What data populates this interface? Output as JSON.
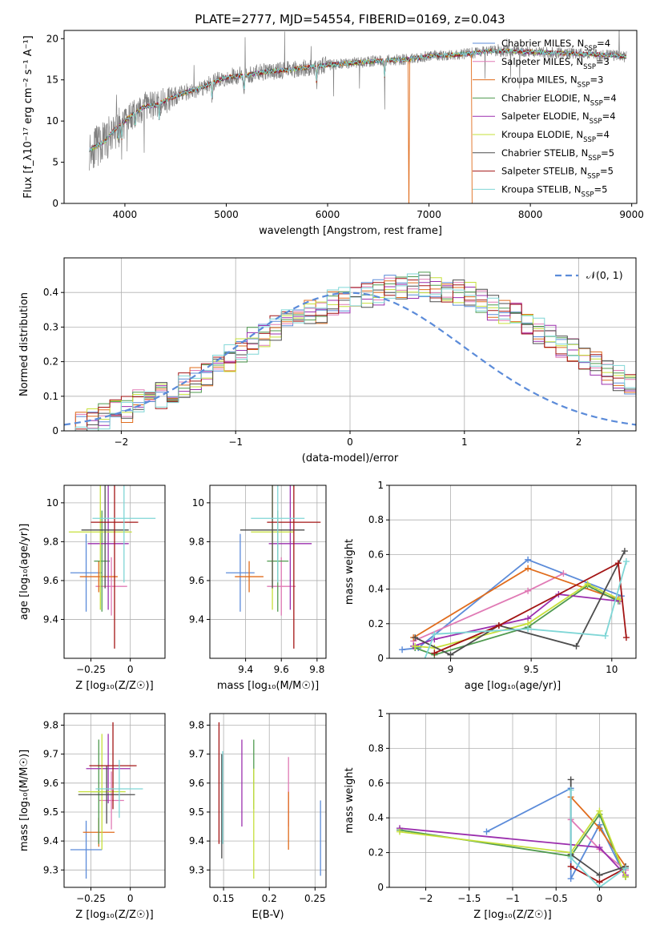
{
  "figure_title": "PLATE=2777, MJD=54554, FIBERID=0169, z=0.043",
  "colors": {
    "chabrier_miles": "#5b8bd9",
    "salpeter_miles": "#e07ab5",
    "kroupa_miles": "#e06c1c",
    "chabrier_elodie": "#4f9a4f",
    "salpeter_elodie": "#9b2fae",
    "kroupa_elodie": "#c6e03a",
    "chabrier_stelib": "#4d4d4d",
    "salpeter_stelib": "#a31515",
    "kroupa_stelib": "#7fd6d6",
    "data": "#808080",
    "gaussian": "#5b8bd9",
    "grid": "#b0b0b0"
  },
  "chart_data": [
    {
      "id": "spectrum",
      "type": "line",
      "xlabel": "wavelength [Angstrom, rest frame]",
      "ylabel": "Flux [f_λ10⁻¹⁷ erg cm⁻² s⁻¹ A⁻¹]",
      "xlim": [
        3400,
        9050
      ],
      "ylim": [
        0,
        21
      ],
      "xticks": [
        4000,
        5000,
        6000,
        7000,
        8000,
        9000
      ],
      "yticks": [
        0,
        5,
        10,
        15,
        20
      ],
      "grid": false,
      "legend_position": "right",
      "data_range": [
        3650,
        8950
      ],
      "continuum": [
        [
          3650,
          6.5
        ],
        [
          3700,
          6.8
        ],
        [
          3800,
          7.5
        ],
        [
          3900,
          9.0
        ],
        [
          4000,
          10.0
        ],
        [
          4100,
          11.0
        ],
        [
          4200,
          11.8
        ],
        [
          4300,
          11.9
        ],
        [
          4400,
          12.5
        ],
        [
          4500,
          13.0
        ],
        [
          4600,
          13.5
        ],
        [
          4700,
          13.8
        ],
        [
          4800,
          14.3
        ],
        [
          4900,
          14.8
        ],
        [
          5000,
          15.3
        ],
        [
          5200,
          15.6
        ],
        [
          5400,
          16.0
        ],
        [
          5600,
          16.2
        ],
        [
          5800,
          16.5
        ],
        [
          6000,
          16.8
        ],
        [
          6200,
          17.0
        ],
        [
          6400,
          17.2
        ],
        [
          6600,
          17.4
        ],
        [
          6800,
          17.5
        ],
        [
          7000,
          17.9
        ],
        [
          7200,
          18.0
        ],
        [
          7400,
          18.2
        ],
        [
          7600,
          18.5
        ],
        [
          7800,
          18.5
        ],
        [
          8000,
          18.4
        ],
        [
          8200,
          18.3
        ],
        [
          8400,
          18.2
        ],
        [
          8600,
          18.1
        ],
        [
          8800,
          18.0
        ],
        [
          8950,
          17.8
        ]
      ],
      "legend": [
        {
          "key": "chabrier_miles",
          "prefix": "Chabrier MILES, N",
          "sub": "SSP",
          "suffix": "=4"
        },
        {
          "key": "salpeter_miles",
          "prefix": "Salpeter MILES, N",
          "sub": "SSP",
          "suffix": "=3"
        },
        {
          "key": "kroupa_miles",
          "prefix": "Kroupa MILES, N",
          "sub": "SSP",
          "suffix": "=3"
        },
        {
          "key": "chabrier_elodie",
          "prefix": "Chabrier ELODIE, N",
          "sub": "SSP",
          "suffix": "=4"
        },
        {
          "key": "salpeter_elodie",
          "prefix": "Salpeter ELODIE, N",
          "sub": "SSP",
          "suffix": "=4"
        },
        {
          "key": "kroupa_elodie",
          "prefix": "Kroupa ELODIE, N",
          "sub": "SSP",
          "suffix": "=4"
        },
        {
          "key": "chabrier_stelib",
          "prefix": "Chabrier STELIB, N",
          "sub": "SSP",
          "suffix": "=5"
        },
        {
          "key": "salpeter_stelib",
          "prefix": "Salpeter STELIB, N",
          "sub": "SSP",
          "suffix": "=5"
        },
        {
          "key": "kroupa_stelib",
          "prefix": "Kroupa STELIB, N",
          "sub": "SSP",
          "suffix": "=5"
        }
      ]
    },
    {
      "id": "residuals",
      "type": "histogram",
      "xlabel": "(data-model)/error",
      "ylabel": "Normed distribution",
      "xlim": [
        -2.5,
        2.5
      ],
      "ylim": [
        0,
        0.5
      ],
      "xticks": [
        -2,
        -1,
        0,
        1,
        2
      ],
      "yticks": [
        0.0,
        0.1,
        0.2,
        0.3,
        0.4
      ],
      "grid": true,
      "legend": "𝒩(0, 1)",
      "legend_position": "top-right",
      "bin_width": 0.1,
      "bins_start": -2.5,
      "base": [
        0.02,
        0.02,
        0.03,
        0.04,
        0.05,
        0.06,
        0.08,
        0.09,
        0.1,
        0.11,
        0.13,
        0.15,
        0.17,
        0.19,
        0.21,
        0.23,
        0.26,
        0.28,
        0.3,
        0.31,
        0.33,
        0.34,
        0.35,
        0.37,
        0.38,
        0.39,
        0.39,
        0.4,
        0.41,
        0.42,
        0.42,
        0.42,
        0.41,
        0.41,
        0.4,
        0.39,
        0.37,
        0.36,
        0.34,
        0.33,
        0.31,
        0.29,
        0.27,
        0.25,
        0.23,
        0.21,
        0.19,
        0.17,
        0.15,
        0.13,
        0.11,
        0.1,
        0.08,
        0.07,
        0.06,
        0.05,
        0.04,
        0.03,
        0.03,
        0.02
      ]
    },
    {
      "id": "age_vs_z",
      "type": "errorbar",
      "xlabel": "Z [log₁₀(Z/Z☉)]",
      "ylabel": "age  [log₁₀(age/yr)]",
      "xlim": [
        -0.42,
        0.22
      ],
      "ylim": [
        9.2,
        10.09
      ],
      "xticks": [
        -0.25,
        0.0
      ],
      "yticks": [
        9.4,
        9.6,
        9.8,
        10.0
      ],
      "grid": true,
      "points": [
        {
          "k": "chabrier_miles",
          "x": -0.28,
          "xe": 0.1,
          "y": 9.64,
          "ye": 0.2
        },
        {
          "k": "salpeter_miles",
          "x": -0.12,
          "xe": 0.1,
          "y": 9.57,
          "ye": 0.15
        },
        {
          "k": "kroupa_miles",
          "x": -0.2,
          "xe": 0.12,
          "y": 9.62,
          "ye": 0.08
        },
        {
          "k": "chabrier_elodie",
          "x": -0.18,
          "xe": 0.05,
          "y": 9.7,
          "ye": 0.26
        },
        {
          "k": "salpeter_elodie",
          "x": -0.14,
          "xe": 0.13,
          "y": 9.79,
          "ye": 0.34
        },
        {
          "k": "kroupa_elodie",
          "x": -0.19,
          "xe": 0.2,
          "y": 9.85,
          "ye": 0.4
        },
        {
          "k": "chabrier_stelib",
          "x": -0.16,
          "xe": 0.15,
          "y": 9.86,
          "ye": 0.3
        },
        {
          "k": "salpeter_stelib",
          "x": -0.1,
          "xe": 0.15,
          "y": 9.9,
          "ye": 0.65
        },
        {
          "k": "kroupa_stelib",
          "x": -0.04,
          "xe": 0.2,
          "y": 9.92,
          "ye": 0.33
        }
      ]
    },
    {
      "id": "age_vs_mass",
      "type": "errorbar",
      "xlabel": "mass [log₁₀(M/M☉)]",
      "ylabel": "",
      "xlim": [
        9.2,
        9.85
      ],
      "ylim": [
        9.2,
        10.09
      ],
      "xticks": [
        9.4,
        9.6,
        9.8
      ],
      "yticks": [
        9.4,
        9.6,
        9.8,
        10.0
      ],
      "grid": true,
      "points": [
        {
          "k": "chabrier_miles",
          "x": 9.37,
          "xe": 0.08,
          "y": 9.64,
          "ye": 0.2
        },
        {
          "k": "salpeter_miles",
          "x": 9.6,
          "xe": 0.08,
          "y": 9.57,
          "ye": 0.15
        },
        {
          "k": "kroupa_miles",
          "x": 9.42,
          "xe": 0.08,
          "y": 9.62,
          "ye": 0.08
        },
        {
          "k": "chabrier_elodie",
          "x": 9.58,
          "xe": 0.06,
          "y": 9.7,
          "ye": 0.26
        },
        {
          "k": "salpeter_elodie",
          "x": 9.65,
          "xe": 0.12,
          "y": 9.79,
          "ye": 0.34
        },
        {
          "k": "kroupa_elodie",
          "x": 9.55,
          "xe": 0.12,
          "y": 9.85,
          "ye": 0.4
        },
        {
          "k": "chabrier_stelib",
          "x": 9.55,
          "xe": 0.18,
          "y": 9.86,
          "ye": 0.3
        },
        {
          "k": "salpeter_stelib",
          "x": 9.67,
          "xe": 0.15,
          "y": 9.9,
          "ye": 0.65
        },
        {
          "k": "kroupa_stelib",
          "x": 9.58,
          "xe": 0.15,
          "y": 9.92,
          "ye": 0.33
        }
      ]
    },
    {
      "id": "weight_vs_age",
      "type": "line",
      "xlabel": "age  [log₁₀(age/yr)]",
      "ylabel": "mass weight",
      "xlim": [
        8.62,
        10.15
      ],
      "ylim": [
        0,
        1.0
      ],
      "xticks": [
        9.0,
        9.5,
        10.0
      ],
      "yticks": [
        0.0,
        0.2,
        0.4,
        0.6,
        0.8,
        1.0
      ],
      "grid": true,
      "series": [
        {
          "k": "chabrier_miles",
          "pts": [
            [
              8.7,
              0.05
            ],
            [
              8.8,
              0.06
            ],
            [
              9.48,
              0.57
            ],
            [
              10.06,
              0.36
            ]
          ]
        },
        {
          "k": "salpeter_miles",
          "pts": [
            [
              8.77,
              0.1
            ],
            [
              9.48,
              0.39
            ],
            [
              9.7,
              0.49
            ]
          ]
        },
        {
          "k": "kroupa_miles",
          "pts": [
            [
              8.77,
              0.12
            ],
            [
              9.48,
              0.52
            ],
            [
              10.04,
              0.34
            ]
          ]
        },
        {
          "k": "chabrier_elodie",
          "pts": [
            [
              8.78,
              0.06
            ],
            [
              8.9,
              0.02
            ],
            [
              9.48,
              0.18
            ],
            [
              9.85,
              0.42
            ],
            [
              10.04,
              0.33
            ]
          ]
        },
        {
          "k": "salpeter_elodie",
          "pts": [
            [
              8.77,
              0.07
            ],
            [
              8.9,
              0.11
            ],
            [
              9.48,
              0.23
            ],
            [
              9.67,
              0.37
            ],
            [
              10.05,
              0.33
            ]
          ]
        },
        {
          "k": "kroupa_elodie",
          "pts": [
            [
              8.78,
              0.07
            ],
            [
              8.9,
              0.06
            ],
            [
              9.48,
              0.2
            ],
            [
              9.85,
              0.43
            ],
            [
              10.05,
              0.34
            ]
          ]
        },
        {
          "k": "chabrier_stelib",
          "pts": [
            [
              8.78,
              0.12
            ],
            [
              9.0,
              0.02
            ],
            [
              9.3,
              0.19
            ],
            [
              9.78,
              0.07
            ],
            [
              10.08,
              0.62
            ]
          ]
        },
        {
          "k": "salpeter_stelib",
          "pts": [
            [
              8.9,
              0.03
            ],
            [
              9.3,
              0.19
            ],
            [
              10.04,
              0.55
            ],
            [
              10.09,
              0.12
            ]
          ]
        },
        {
          "k": "kroupa_stelib",
          "pts": [
            [
              8.82,
              -0.05
            ],
            [
              8.9,
              0.14
            ],
            [
              9.48,
              0.17
            ],
            [
              9.96,
              0.13
            ],
            [
              10.09,
              0.56
            ]
          ]
        }
      ]
    },
    {
      "id": "mass_vs_z",
      "type": "errorbar",
      "xlabel": "Z [log₁₀(Z/Z☉)]",
      "ylabel": "mass [log₁₀(M/M☉)]",
      "xlim": [
        -0.42,
        0.22
      ],
      "ylim": [
        9.24,
        9.84
      ],
      "xticks": [
        -0.25,
        0.0
      ],
      "yticks": [
        9.3,
        9.4,
        9.5,
        9.6,
        9.7,
        9.8
      ],
      "grid": true,
      "points": [
        {
          "k": "chabrier_miles",
          "x": -0.28,
          "xe": 0.1,
          "y": 9.37,
          "ye": 0.1
        },
        {
          "k": "salpeter_miles",
          "x": -0.12,
          "xe": 0.08,
          "y": 9.54,
          "ye": 0.1
        },
        {
          "k": "kroupa_miles",
          "x": -0.2,
          "xe": 0.1,
          "y": 9.43,
          "ye": 0.05
        },
        {
          "k": "chabrier_elodie",
          "x": -0.2,
          "xe": 0.05,
          "y": 9.57,
          "ye": 0.18
        },
        {
          "k": "salpeter_elodie",
          "x": -0.14,
          "xe": 0.14,
          "y": 9.65,
          "ye": 0.12
        },
        {
          "k": "kroupa_elodie",
          "x": -0.18,
          "xe": 0.15,
          "y": 9.57,
          "ye": 0.2
        },
        {
          "k": "chabrier_stelib",
          "x": -0.15,
          "xe": 0.18,
          "y": 9.56,
          "ye": 0.1
        },
        {
          "k": "salpeter_stelib",
          "x": -0.11,
          "xe": 0.15,
          "y": 9.66,
          "ye": 0.15
        },
        {
          "k": "kroupa_stelib",
          "x": -0.07,
          "xe": 0.15,
          "y": 9.58,
          "ye": 0.1
        }
      ]
    },
    {
      "id": "mass_vs_ebv",
      "type": "errorbar",
      "xlabel": "E(B-V)",
      "ylabel": "",
      "xlim": [
        0.135,
        0.262
      ],
      "ylim": [
        9.24,
        9.84
      ],
      "xticks": [
        0.15,
        0.2,
        0.25
      ],
      "yticks": [
        9.3,
        9.4,
        9.5,
        9.6,
        9.7,
        9.8
      ],
      "grid": true,
      "points": [
        {
          "k": "chabrier_miles",
          "x": 0.256,
          "xe": 0,
          "y": 9.41,
          "ye": 0.13
        },
        {
          "k": "salpeter_miles",
          "x": 0.221,
          "xe": 0,
          "y": 9.57,
          "ye": 0.12
        },
        {
          "k": "kroupa_miles",
          "x": 0.221,
          "xe": 0,
          "y": 9.47,
          "ye": 0.1
        },
        {
          "k": "chabrier_elodie",
          "x": 0.183,
          "xe": 0,
          "y": 9.63,
          "ye": 0.12
        },
        {
          "k": "salpeter_elodie",
          "x": 0.17,
          "xe": 0,
          "y": 9.6,
          "ye": 0.15
        },
        {
          "k": "kroupa_elodie",
          "x": 0.183,
          "xe": 0,
          "y": 9.46,
          "ye": 0.19
        },
        {
          "k": "chabrier_stelib",
          "x": 0.148,
          "xe": 0,
          "y": 9.52,
          "ye": 0.18
        },
        {
          "k": "salpeter_stelib",
          "x": 0.145,
          "xe": 0,
          "y": 9.6,
          "ye": 0.21
        },
        {
          "k": "kroupa_stelib",
          "x": 0.149,
          "xe": 0,
          "y": 9.55,
          "ye": 0.16
        }
      ]
    },
    {
      "id": "weight_vs_z",
      "type": "line",
      "xlabel": "Z [log₁₀(Z/Z☉)]",
      "ylabel": "mass weight",
      "xlim": [
        -2.42,
        0.42
      ],
      "ylim": [
        0,
        1.0
      ],
      "xticks": [
        -2.0,
        -1.5,
        -1.0,
        -0.5,
        0.0
      ],
      "yticks": [
        0.0,
        0.2,
        0.4,
        0.6,
        0.8,
        1.0
      ],
      "grid": true,
      "series": [
        {
          "k": "chabrier_miles",
          "pts": [
            [
              -1.3,
              0.32
            ],
            [
              -0.33,
              0.57
            ],
            [
              -0.33,
              0.05
            ],
            [
              0.0,
              0.36
            ],
            [
              0.3,
              0.06
            ]
          ]
        },
        {
          "k": "salpeter_miles",
          "pts": [
            [
              -0.33,
              0.39
            ],
            [
              0.0,
              0.22
            ],
            [
              0.3,
              0.1
            ]
          ]
        },
        {
          "k": "kroupa_miles",
          "pts": [
            [
              -0.33,
              0.52
            ],
            [
              0.0,
              0.34
            ],
            [
              0.3,
              0.12
            ]
          ]
        },
        {
          "k": "chabrier_elodie",
          "pts": [
            [
              -2.3,
              0.33
            ],
            [
              -0.33,
              0.18
            ],
            [
              0.0,
              0.42
            ],
            [
              0.3,
              0.06
            ]
          ]
        },
        {
          "k": "salpeter_elodie",
          "pts": [
            [
              -2.3,
              0.34
            ],
            [
              0.0,
              0.23
            ],
            [
              0.3,
              0.07
            ]
          ]
        },
        {
          "k": "kroupa_elodie",
          "pts": [
            [
              -2.3,
              0.32
            ],
            [
              -0.33,
              0.2
            ],
            [
              0.0,
              0.44
            ],
            [
              0.3,
              0.06
            ]
          ]
        },
        {
          "k": "chabrier_stelib",
          "pts": [
            [
              -0.33,
              0.62
            ],
            [
              -0.33,
              0.19
            ],
            [
              0.0,
              0.07
            ],
            [
              0.3,
              0.12
            ]
          ]
        },
        {
          "k": "salpeter_stelib",
          "pts": [
            [
              -0.33,
              0.12
            ],
            [
              0.0,
              0.03
            ],
            [
              0.3,
              0.11
            ]
          ]
        },
        {
          "k": "kroupa_stelib",
          "pts": [
            [
              -0.33,
              0.56
            ],
            [
              -0.33,
              0.17
            ],
            [
              0.0,
              0.0
            ],
            [
              0.3,
              0.11
            ]
          ]
        }
      ]
    }
  ]
}
